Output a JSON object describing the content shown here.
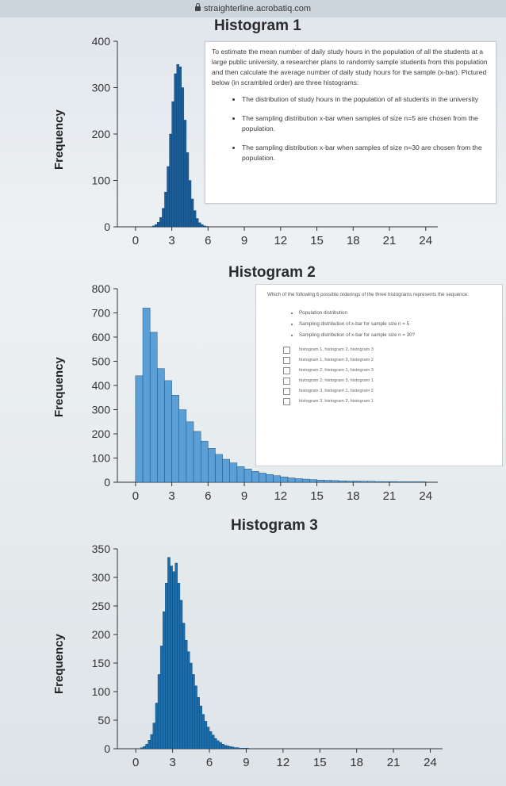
{
  "browser": {
    "url": "straighterline.acrobatiq.com"
  },
  "histograms": [
    {
      "title": "Histogram 1",
      "ylabel": "Frequency"
    },
    {
      "title": "Histogram 2",
      "ylabel": "Frequency"
    },
    {
      "title": "Histogram 3",
      "ylabel": "Frequency"
    }
  ],
  "question_intro": "To estimate the mean number of daily study hours in the population of all the students at a large public university, a researcher plans to randomly sample students from this population and then calculate the average number of daily study hours for the sample (x-bar). Pictured below (in scrambled order) are three histograms:",
  "intro_bullets": [
    "The distribution of study hours in the population of all students in the university",
    "The sampling distribution x-bar when samples of size n=5 are chosen from the population.",
    "The sampling distribution x-bar when samples of size n=30 are chosen from the population."
  ],
  "question_prompt": "Which of the following 6 possible orderings of the three histograms represents the sequence:",
  "sequence_bullets": [
    "Population distribution",
    "Sampling distribution of x-bar for sample size n = 5",
    "Sampling distribution of x-bar for sample size n = 30?"
  ],
  "options": [
    "histogram 1, histogram 2, histogram 3",
    "histogram 1, histogram 3, histogram 2",
    "histogram 2, histogram 1, histogram 3",
    "histogram 2, histogram 3, histogram 1",
    "histogram 3, histogram 1, histogram 2",
    "histogram 3, histogram 2, histogram 1"
  ],
  "chart_data": [
    {
      "type": "bar",
      "title": "Histogram 1",
      "ylabel": "Frequency",
      "xlabel": "",
      "xlim": [
        -1.5,
        25
      ],
      "ylim": [
        0,
        400
      ],
      "x_ticks": [
        0,
        3,
        6,
        9,
        12,
        15,
        18,
        21,
        24
      ],
      "y_ticks": [
        0,
        100,
        200,
        300,
        400
      ],
      "bin_width": 0.2,
      "bin_start": 1.4,
      "values": [
        2,
        5,
        10,
        20,
        40,
        75,
        130,
        200,
        270,
        330,
        350,
        345,
        300,
        230,
        160,
        100,
        60,
        35,
        18,
        9,
        5,
        2,
        1
      ],
      "color": "#1b5e9a"
    },
    {
      "type": "bar",
      "title": "Histogram 2",
      "ylabel": "Frequency",
      "xlabel": "",
      "xlim": [
        -1.5,
        25
      ],
      "ylim": [
        0,
        800
      ],
      "x_ticks": [
        0,
        3,
        6,
        9,
        12,
        15,
        18,
        21,
        24
      ],
      "y_ticks": [
        0,
        100,
        200,
        300,
        400,
        500,
        600,
        700,
        800
      ],
      "bin_width": 0.6,
      "bin_start": 0,
      "values": [
        440,
        720,
        620,
        470,
        420,
        360,
        300,
        250,
        210,
        170,
        140,
        115,
        95,
        80,
        65,
        55,
        45,
        38,
        32,
        27,
        22,
        18,
        15,
        13,
        11,
        9,
        8,
        7,
        6,
        5,
        5,
        4,
        4,
        3,
        3,
        3,
        2,
        2,
        2,
        2
      ],
      "color": "#5aa0d6"
    },
    {
      "type": "bar",
      "title": "Histogram 3",
      "ylabel": "Frequency",
      "xlabel": "",
      "xlim": [
        -1.5,
        25
      ],
      "ylim": [
        0,
        350
      ],
      "x_ticks": [
        0,
        3,
        6,
        9,
        12,
        15,
        18,
        21,
        24
      ],
      "y_ticks": [
        0,
        50,
        100,
        150,
        200,
        250,
        300,
        350
      ],
      "bin_width": 0.2,
      "bin_start": 0.4,
      "values": [
        2,
        4,
        8,
        15,
        25,
        45,
        80,
        130,
        180,
        240,
        290,
        335,
        320,
        310,
        325,
        290,
        260,
        220,
        190,
        170,
        150,
        130,
        110,
        90,
        75,
        60,
        48,
        38,
        30,
        24,
        18,
        14,
        11,
        8,
        6,
        5,
        4,
        3,
        2,
        2,
        1,
        1,
        1,
        1
      ],
      "color": "#1b6fae"
    }
  ]
}
